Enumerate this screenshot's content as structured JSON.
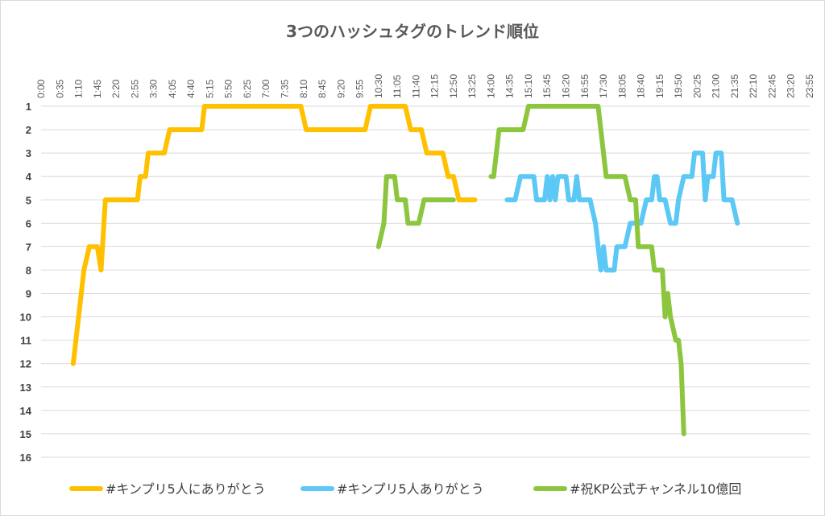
{
  "chart_data": {
    "type": "line",
    "title": "3つのハッシュタグのトレンド順位",
    "xlabel": "",
    "ylabel": "",
    "x_tick_labels": [
      "0:00",
      "0:35",
      "1:10",
      "1:45",
      "2:20",
      "2:55",
      "3:30",
      "4:05",
      "4:40",
      "5:15",
      "5:50",
      "6:25",
      "7:00",
      "7:35",
      "8:10",
      "8:45",
      "9:20",
      "9:55",
      "10:30",
      "11:05",
      "11:40",
      "12:15",
      "12:50",
      "13:25",
      "14:00",
      "14:35",
      "15:10",
      "15:45",
      "16:20",
      "16:55",
      "17:30",
      "18:05",
      "18:40",
      "19:15",
      "19:50",
      "20:25",
      "21:00",
      "21:35",
      "22:10",
      "22:45",
      "23:20",
      "23:55"
    ],
    "y_tick_labels": [
      "1",
      "2",
      "3",
      "4",
      "5",
      "6",
      "7",
      "8",
      "9",
      "10",
      "11",
      "12",
      "13",
      "14",
      "15",
      "16"
    ],
    "y_axis": "reversed rank",
    "ylim": [
      1,
      16
    ],
    "xlim": [
      "0:00",
      "23:55"
    ],
    "grid": true,
    "legend_position": "bottom",
    "series": [
      {
        "name": "#キンプリ5人にありがとう",
        "color": "#FFC000",
        "points": [
          [
            "1:00",
            12
          ],
          [
            "1:10",
            10
          ],
          [
            "1:20",
            8
          ],
          [
            "1:30",
            7
          ],
          [
            "1:45",
            7
          ],
          [
            "1:52",
            8
          ],
          [
            "2:00",
            5
          ],
          [
            "2:15",
            5
          ],
          [
            "2:40",
            5
          ],
          [
            "3:00",
            5
          ],
          [
            "3:05",
            4
          ],
          [
            "3:15",
            4
          ],
          [
            "3:20",
            3
          ],
          [
            "3:30",
            3
          ],
          [
            "3:50",
            3
          ],
          [
            "4:00",
            2
          ],
          [
            "4:20",
            2
          ],
          [
            "4:40",
            2
          ],
          [
            "5:00",
            2
          ],
          [
            "5:05",
            1
          ],
          [
            "6:00",
            1
          ],
          [
            "7:00",
            1
          ],
          [
            "8:05",
            1
          ],
          [
            "8:15",
            2
          ],
          [
            "8:50",
            2
          ],
          [
            "9:30",
            2
          ],
          [
            "10:05",
            2
          ],
          [
            "10:15",
            1
          ],
          [
            "10:40",
            1
          ],
          [
            "11:10",
            1
          ],
          [
            "11:20",
            1
          ],
          [
            "11:30",
            2
          ],
          [
            "11:50",
            2
          ],
          [
            "12:00",
            3
          ],
          [
            "12:30",
            3
          ],
          [
            "12:40",
            4
          ],
          [
            "12:50",
            4
          ],
          [
            "13:00",
            5
          ],
          [
            "13:30",
            5
          ]
        ]
      },
      {
        "name": "#キンプリ5人ありがとう",
        "color": "#5BC8F5",
        "points": [
          [
            "14:30",
            5
          ],
          [
            "14:45",
            5
          ],
          [
            "14:55",
            4
          ],
          [
            "15:20",
            4
          ],
          [
            "15:25",
            5
          ],
          [
            "15:40",
            5
          ],
          [
            "15:45",
            4
          ],
          [
            "15:50",
            5
          ],
          [
            "15:55",
            4
          ],
          [
            "16:00",
            5
          ],
          [
            "16:05",
            4
          ],
          [
            "16:20",
            4
          ],
          [
            "16:25",
            5
          ],
          [
            "16:35",
            5
          ],
          [
            "16:40",
            4
          ],
          [
            "16:45",
            5
          ],
          [
            "17:05",
            5
          ],
          [
            "17:15",
            6
          ],
          [
            "17:25",
            8
          ],
          [
            "17:30",
            7
          ],
          [
            "17:35",
            8
          ],
          [
            "17:50",
            8
          ],
          [
            "17:55",
            7
          ],
          [
            "18:10",
            7
          ],
          [
            "18:20",
            6
          ],
          [
            "18:40",
            6
          ],
          [
            "18:50",
            5
          ],
          [
            "19:00",
            5
          ],
          [
            "19:05",
            4
          ],
          [
            "19:10",
            4
          ],
          [
            "19:15",
            5
          ],
          [
            "19:25",
            5
          ],
          [
            "19:35",
            6
          ],
          [
            "19:45",
            6
          ],
          [
            "19:50",
            5
          ],
          [
            "20:00",
            4
          ],
          [
            "20:05",
            4
          ],
          [
            "20:15",
            4
          ],
          [
            "20:20",
            3
          ],
          [
            "20:35",
            3
          ],
          [
            "20:40",
            5
          ],
          [
            "20:45",
            4
          ],
          [
            "20:55",
            4
          ],
          [
            "21:00",
            3
          ],
          [
            "21:10",
            3
          ],
          [
            "21:15",
            5
          ],
          [
            "21:30",
            5
          ],
          [
            "21:40",
            6
          ]
        ]
      },
      {
        "name": "#祝KP公式チャンネル10億回",
        "color": "#8CC63F",
        "points": [
          [
            "10:30",
            7
          ],
          [
            "10:40",
            6
          ],
          [
            "10:45",
            4
          ],
          [
            "11:00",
            4
          ],
          [
            "11:05",
            5
          ],
          [
            "11:20",
            5
          ],
          [
            "11:25",
            6
          ],
          [
            "11:45",
            6
          ],
          [
            "11:55",
            5
          ],
          [
            "12:10",
            5
          ],
          [
            "12:30",
            5
          ],
          [
            "12:50",
            5
          ],
          [
            "__gap__",
            null
          ],
          [
            "14:00",
            4
          ],
          [
            "14:05",
            4
          ],
          [
            "14:15",
            2
          ],
          [
            "14:40",
            2
          ],
          [
            "15:00",
            2
          ],
          [
            "15:10",
            1
          ],
          [
            "15:30",
            1
          ],
          [
            "16:30",
            1
          ],
          [
            "17:20",
            1
          ],
          [
            "17:30",
            3
          ],
          [
            "17:35",
            4
          ],
          [
            "18:00",
            4
          ],
          [
            "18:10",
            4
          ],
          [
            "18:20",
            5
          ],
          [
            "18:30",
            5
          ],
          [
            "18:35",
            7
          ],
          [
            "18:50",
            7
          ],
          [
            "19:00",
            7
          ],
          [
            "19:05",
            8
          ],
          [
            "19:20",
            8
          ],
          [
            "19:25",
            10
          ],
          [
            "19:30",
            9
          ],
          [
            "19:35",
            10
          ],
          [
            "19:45",
            11
          ],
          [
            "19:50",
            11
          ],
          [
            "19:55",
            12
          ],
          [
            "20:00",
            15
          ]
        ]
      }
    ]
  }
}
